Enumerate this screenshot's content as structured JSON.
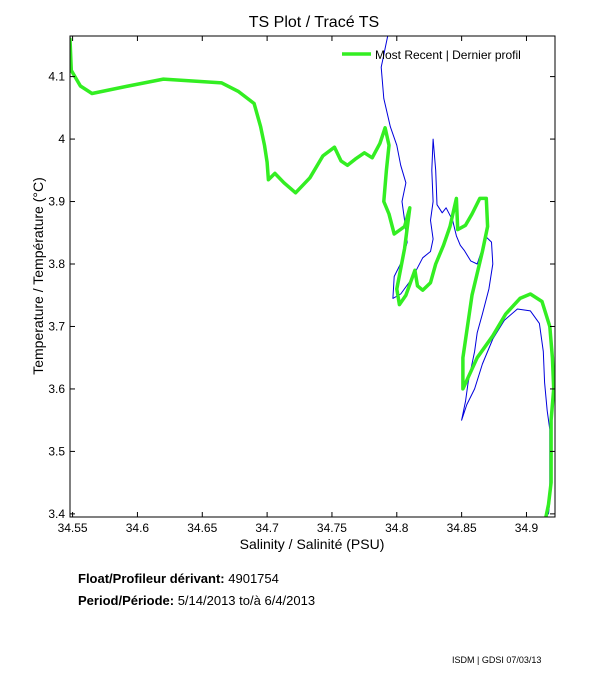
{
  "chart_data": {
    "type": "line",
    "title": "TS Plot / Tracé TS",
    "xlabel": "Salinity / Salinité (PSU)",
    "ylabel": "Temperature / Température (°C)",
    "xlim": [
      34.548,
      34.922
    ],
    "ylim": [
      3.395,
      4.165
    ],
    "xticks": [
      34.55,
      34.6,
      34.65,
      34.7,
      34.75,
      34.8,
      34.85,
      34.9
    ],
    "xtick_labels": [
      "34.55",
      "34.6",
      "34.65",
      "34.7",
      "34.75",
      "34.8",
      "34.85",
      "34.9"
    ],
    "yticks": [
      3.4,
      3.5,
      3.6,
      3.7,
      3.8,
      3.9,
      4.0,
      4.1
    ],
    "ytick_labels": [
      "3.4",
      "3.5",
      "3.6",
      "3.7",
      "3.8",
      "3.9",
      "4",
      "4.1"
    ],
    "grid": false,
    "legend": "top-right",
    "series": [
      {
        "name": "Most Recent | Dernier profil",
        "color": "#33ee22",
        "points": [
          [
            34.548,
            4.16
          ],
          [
            34.549,
            4.11
          ],
          [
            34.556,
            4.085
          ],
          [
            34.565,
            4.073
          ],
          [
            34.593,
            4.085
          ],
          [
            34.62,
            4.096
          ],
          [
            34.665,
            4.09
          ],
          [
            34.678,
            4.076
          ],
          [
            34.69,
            4.057
          ],
          [
            34.695,
            4.02
          ],
          [
            34.698,
            3.99
          ],
          [
            34.7,
            3.963
          ],
          [
            34.701,
            3.935
          ],
          [
            34.706,
            3.945
          ],
          [
            34.713,
            3.93
          ],
          [
            34.722,
            3.914
          ],
          [
            34.733,
            3.938
          ],
          [
            34.743,
            3.973
          ],
          [
            34.752,
            3.987
          ],
          [
            34.757,
            3.965
          ],
          [
            34.762,
            3.958
          ],
          [
            34.768,
            3.968
          ],
          [
            34.775,
            3.978
          ],
          [
            34.781,
            3.97
          ],
          [
            34.787,
            3.993
          ],
          [
            34.791,
            4.018
          ],
          [
            34.794,
            3.99
          ],
          [
            34.792,
            3.95
          ],
          [
            34.79,
            3.9
          ],
          [
            34.794,
            3.88
          ],
          [
            34.798,
            3.848
          ],
          [
            34.806,
            3.86
          ],
          [
            34.81,
            3.89
          ],
          [
            34.806,
            3.825
          ],
          [
            34.8,
            3.76
          ],
          [
            34.802,
            3.735
          ],
          [
            34.807,
            3.75
          ],
          [
            34.814,
            3.79
          ],
          [
            34.816,
            3.765
          ],
          [
            34.82,
            3.758
          ],
          [
            34.826,
            3.77
          ],
          [
            34.83,
            3.8
          ],
          [
            34.836,
            3.83
          ],
          [
            34.841,
            3.86
          ],
          [
            34.846,
            3.905
          ],
          [
            34.847,
            3.855
          ],
          [
            34.853,
            3.862
          ],
          [
            34.858,
            3.88
          ],
          [
            34.864,
            3.905
          ],
          [
            34.869,
            3.905
          ],
          [
            34.87,
            3.86
          ],
          [
            34.866,
            3.82
          ],
          [
            34.858,
            3.75
          ],
          [
            34.851,
            3.65
          ],
          [
            34.851,
            3.6
          ],
          [
            34.862,
            3.65
          ],
          [
            34.874,
            3.685
          ],
          [
            34.884,
            3.72
          ],
          [
            34.895,
            3.745
          ],
          [
            34.903,
            3.752
          ],
          [
            34.912,
            3.74
          ],
          [
            34.918,
            3.7
          ],
          [
            34.92,
            3.65
          ],
          [
            34.921,
            3.6
          ],
          [
            34.919,
            3.55
          ],
          [
            34.919,
            3.5
          ],
          [
            34.919,
            3.45
          ],
          [
            34.917,
            3.415
          ],
          [
            34.915,
            3.395
          ]
        ]
      },
      {
        "name": "",
        "color": "#0000dd",
        "points": [
          [
            34.793,
            4.165
          ],
          [
            34.788,
            4.115
          ],
          [
            34.79,
            4.065
          ],
          [
            34.795,
            4.02
          ],
          [
            34.8,
            3.99
          ],
          [
            34.803,
            3.958
          ],
          [
            34.807,
            3.93
          ],
          [
            34.804,
            3.9
          ],
          [
            34.806,
            3.87
          ],
          [
            34.808,
            3.835
          ],
          [
            34.804,
            3.805
          ],
          [
            34.798,
            3.78
          ],
          [
            34.797,
            3.745
          ],
          [
            34.803,
            3.752
          ],
          [
            34.81,
            3.772
          ],
          [
            34.815,
            3.79
          ],
          [
            34.82,
            3.81
          ],
          [
            34.826,
            3.82
          ],
          [
            34.828,
            3.84
          ],
          [
            34.826,
            3.87
          ],
          [
            34.828,
            3.9
          ],
          [
            34.827,
            3.95
          ],
          [
            34.828,
            4.0
          ],
          [
            34.83,
            3.95
          ],
          [
            34.831,
            3.895
          ],
          [
            34.835,
            3.882
          ],
          [
            34.838,
            3.89
          ],
          [
            34.843,
            3.87
          ],
          [
            34.846,
            3.845
          ],
          [
            34.849,
            3.83
          ],
          [
            34.852,
            3.822
          ],
          [
            34.857,
            3.805
          ],
          [
            34.862,
            3.8
          ],
          [
            34.866,
            3.825
          ],
          [
            34.868,
            3.845
          ],
          [
            34.873,
            3.835
          ],
          [
            34.874,
            3.8
          ],
          [
            34.871,
            3.76
          ],
          [
            34.866,
            3.72
          ],
          [
            34.862,
            3.69
          ],
          [
            34.86,
            3.66
          ],
          [
            34.857,
            3.63
          ],
          [
            34.855,
            3.61
          ],
          [
            34.853,
            3.58
          ],
          [
            34.85,
            3.55
          ],
          [
            34.854,
            3.575
          ],
          [
            34.86,
            3.6
          ],
          [
            34.866,
            3.64
          ],
          [
            34.874,
            3.68
          ],
          [
            34.883,
            3.71
          ],
          [
            34.893,
            3.728
          ],
          [
            34.903,
            3.725
          ],
          [
            34.91,
            3.705
          ],
          [
            34.913,
            3.66
          ],
          [
            34.914,
            3.61
          ],
          [
            34.916,
            3.565
          ],
          [
            34.918,
            3.535
          ],
          [
            34.918,
            3.49
          ],
          [
            34.918,
            3.45
          ],
          [
            34.918,
            3.42
          ],
          [
            34.917,
            3.4
          ]
        ]
      }
    ]
  },
  "float_label": "Float/Profileur dérivant:",
  "float_id": "4901754",
  "period_label": "Period/Période:",
  "period_start": "5/14/2013",
  "period_sep": "to/à",
  "period_end": "6/4/2013",
  "credit": "ISDM | GDSI  07/03/13"
}
